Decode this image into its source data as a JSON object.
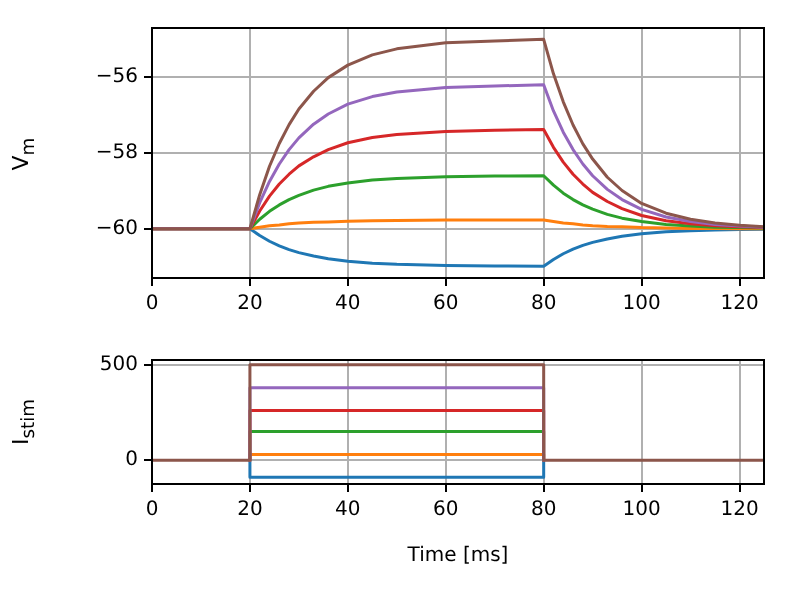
{
  "chart_data": [
    {
      "type": "line",
      "ylabel": "V$_{m}$",
      "xlim": [
        0,
        125
      ],
      "ylim": [
        -61.3,
        -54.7
      ],
      "xticks": [
        0,
        20,
        40,
        60,
        80,
        100,
        120
      ],
      "yticks": [
        {
          "value": -60,
          "label": "−60"
        },
        {
          "value": -58,
          "label": "−58"
        },
        {
          "value": -56,
          "label": "−56"
        }
      ],
      "grid": true,
      "legend": false,
      "marker": "none",
      "line_style": "solid",
      "x": [
        0,
        20,
        22,
        24,
        26,
        28,
        30,
        33,
        36,
        40,
        45,
        50,
        60,
        70,
        80,
        82,
        84,
        86,
        88,
        90,
        93,
        96,
        100,
        105,
        110,
        115,
        120,
        125
      ],
      "series": [
        {
          "color": "#1f77b4",
          "values": [
            -60,
            -60,
            -60.18,
            -60.33,
            -60.45,
            -60.55,
            -60.63,
            -60.72,
            -60.79,
            -60.86,
            -60.91,
            -60.94,
            -60.97,
            -60.98,
            -60.99,
            -60.81,
            -60.66,
            -60.54,
            -60.44,
            -60.36,
            -60.27,
            -60.2,
            -60.13,
            -60.08,
            -60.05,
            -60.03,
            -60.02,
            -60.01
          ]
        },
        {
          "color": "#ff7f0e",
          "values": [
            -60,
            -60,
            -59.96,
            -59.92,
            -59.9,
            -59.87,
            -59.85,
            -59.83,
            -59.82,
            -59.8,
            -59.79,
            -59.78,
            -59.77,
            -59.77,
            -59.77,
            -59.81,
            -59.85,
            -59.87,
            -59.9,
            -59.92,
            -59.94,
            -59.95,
            -59.97,
            -59.98,
            -59.99,
            -59.99,
            -60,
            -60
          ]
        },
        {
          "color": "#2ca02c",
          "values": [
            -60,
            -60,
            -59.75,
            -59.54,
            -59.37,
            -59.23,
            -59.12,
            -58.98,
            -58.88,
            -58.79,
            -58.71,
            -58.67,
            -58.63,
            -58.61,
            -58.6,
            -58.85,
            -59.06,
            -59.23,
            -59.37,
            -59.48,
            -59.62,
            -59.72,
            -59.81,
            -59.89,
            -59.93,
            -59.96,
            -59.97,
            -59.98
          ]
        },
        {
          "color": "#d62728",
          "values": [
            -60,
            -60,
            -59.53,
            -59.14,
            -58.82,
            -58.56,
            -58.34,
            -58.1,
            -57.91,
            -57.73,
            -57.59,
            -57.51,
            -57.43,
            -57.4,
            -57.38,
            -57.85,
            -58.24,
            -58.56,
            -58.82,
            -59.04,
            -59.28,
            -59.47,
            -59.65,
            -59.79,
            -59.87,
            -59.92,
            -59.95,
            -59.97
          ]
        },
        {
          "color": "#9467bd",
          "values": [
            -60,
            -60,
            -59.31,
            -58.75,
            -58.29,
            -57.91,
            -57.6,
            -57.24,
            -56.97,
            -56.71,
            -56.51,
            -56.39,
            -56.27,
            -56.23,
            -56.2,
            -56.89,
            -57.45,
            -57.91,
            -58.29,
            -58.6,
            -58.96,
            -59.23,
            -59.49,
            -59.69,
            -59.81,
            -59.89,
            -59.93,
            -59.96
          ]
        },
        {
          "color": "#8c564b",
          "values": [
            -60,
            -60,
            -59.1,
            -58.35,
            -57.75,
            -57.25,
            -56.84,
            -56.37,
            -56.01,
            -55.68,
            -55.41,
            -55.25,
            -55.09,
            -55.04,
            -55.0,
            -55.91,
            -56.65,
            -57.26,
            -57.76,
            -58.16,
            -58.64,
            -58.99,
            -59.33,
            -59.59,
            -59.75,
            -59.85,
            -59.91,
            -59.95
          ]
        }
      ]
    },
    {
      "type": "line",
      "ylabel": "I$_{stim}$",
      "xlabel": "Time [ms]",
      "xlim": [
        0,
        125
      ],
      "ylim": [
        -125,
        525
      ],
      "xticks": [
        0,
        20,
        40,
        60,
        80,
        100,
        120
      ],
      "yticks": [
        0,
        500
      ],
      "grid": true,
      "legend": false,
      "marker": "none",
      "line_style": "solid",
      "x": [
        20,
        20,
        80,
        80
      ],
      "series": [
        {
          "color": "#1f77b4",
          "values": [
            0,
            -90,
            -90,
            0
          ]
        },
        {
          "color": "#ff7f0e",
          "values": [
            0,
            30,
            30,
            0
          ]
        },
        {
          "color": "#2ca02c",
          "values": [
            0,
            150,
            150,
            0
          ]
        },
        {
          "color": "#d62728",
          "values": [
            0,
            260,
            260,
            0
          ]
        },
        {
          "color": "#9467bd",
          "values": [
            0,
            380,
            380,
            0
          ]
        },
        {
          "color": "#8c564b",
          "x": [
            0,
            20,
            20,
            80,
            80,
            125
          ],
          "values": [
            0,
            0,
            500,
            500,
            0,
            0
          ]
        }
      ]
    }
  ]
}
